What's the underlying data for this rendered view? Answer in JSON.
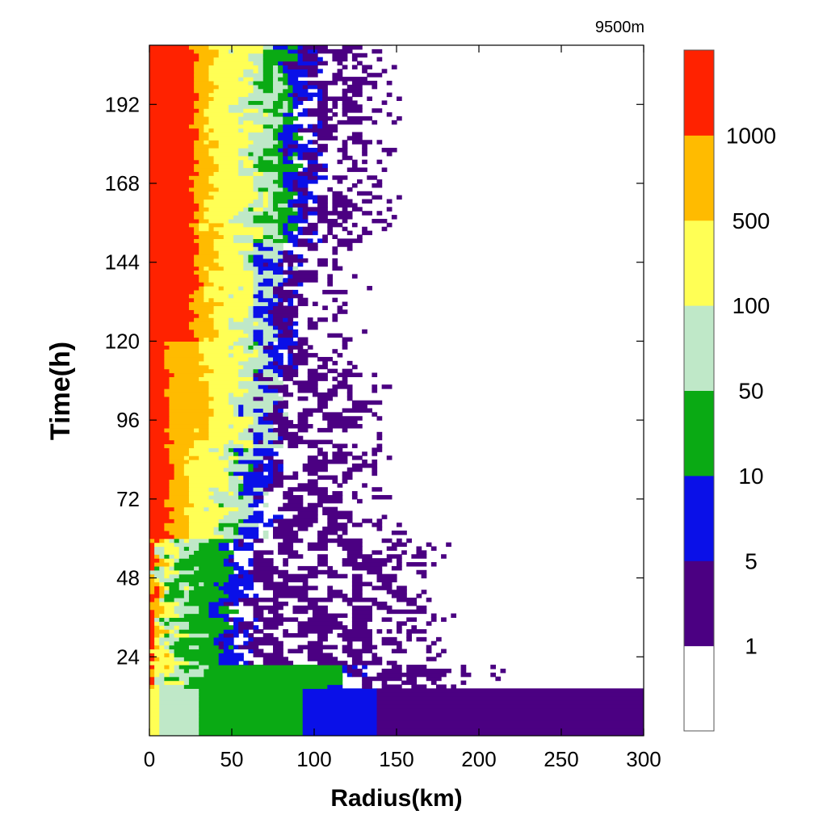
{
  "chart_data": {
    "type": "heatmap",
    "subtitle": "9500m",
    "xlabel": "Radius(km)",
    "ylabel": "Time(h)",
    "xlim": [
      0,
      300
    ],
    "ylim": [
      0,
      210
    ],
    "x_ticks": [
      0,
      50,
      100,
      150,
      200,
      250,
      300
    ],
    "y_ticks": [
      24,
      48,
      72,
      96,
      120,
      144,
      168,
      192
    ],
    "colorbar": {
      "levels": [
        1,
        5,
        10,
        50,
        100,
        500,
        1000
      ],
      "colors": [
        "#ffffff",
        "#4b0082",
        "#0a10e8",
        "#0aaa14",
        "#bfe8c8",
        "#ffff55",
        "#ffbb00",
        "#ff2200"
      ]
    }
  }
}
